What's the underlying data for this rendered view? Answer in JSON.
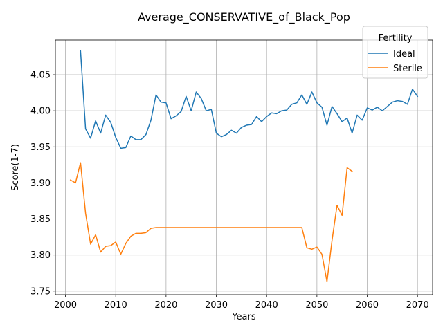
{
  "chart_data": {
    "type": "line",
    "title": "Average_CONSERVATIVE_of_Black_Pop",
    "xlabel": "Years",
    "ylabel": "Score(1-7)",
    "xlim": [
      1998,
      2073
    ],
    "ylim": [
      3.745,
      4.098
    ],
    "xticks": [
      2000,
      2010,
      2020,
      2030,
      2040,
      2050,
      2060,
      2070
    ],
    "yticks": [
      3.75,
      3.8,
      3.85,
      3.9,
      3.95,
      4.0,
      4.05
    ],
    "ytick_labels": [
      "3.75",
      "3.80",
      "3.85",
      "3.90",
      "3.95",
      "4.00",
      "4.05"
    ],
    "grid": true,
    "legend": {
      "title": "Fertility",
      "placement": "top-right"
    },
    "series": [
      {
        "name": "Ideal",
        "color": "#1f77b4",
        "x": [
          2003,
          2004,
          2005,
          2006,
          2007,
          2008,
          2009,
          2010,
          2011,
          2012,
          2013,
          2014,
          2015,
          2016,
          2017,
          2018,
          2019,
          2020,
          2021,
          2022,
          2023,
          2024,
          2025,
          2026,
          2027,
          2028,
          2029,
          2030,
          2031,
          2032,
          2033,
          2034,
          2035,
          2036,
          2037,
          2038,
          2039,
          2040,
          2041,
          2042,
          2043,
          2044,
          2045,
          2046,
          2047,
          2048,
          2049,
          2050,
          2051,
          2052,
          2053,
          2054,
          2055,
          2056,
          2057,
          2058,
          2059,
          2060,
          2061,
          2062,
          2063,
          2064,
          2065,
          2066,
          2067,
          2068,
          2069,
          2070
        ],
        "y": [
          4.083,
          3.975,
          3.962,
          3.986,
          3.969,
          3.994,
          3.984,
          3.963,
          3.948,
          3.949,
          3.965,
          3.96,
          3.96,
          3.967,
          3.987,
          4.022,
          4.012,
          4.011,
          3.989,
          3.993,
          3.999,
          4.02,
          4.0,
          4.026,
          4.017,
          4.0,
          4.002,
          3.969,
          3.964,
          3.967,
          3.973,
          3.969,
          3.977,
          3.98,
          3.981,
          3.992,
          3.985,
          3.992,
          3.997,
          3.996,
          4.0,
          4.001,
          4.009,
          4.011,
          4.022,
          4.009,
          4.026,
          4.011,
          4.005,
          3.98,
          4.006,
          3.996,
          3.985,
          3.99,
          3.969,
          3.994,
          3.987,
          4.004,
          4.001,
          4.005,
          4.0,
          4.006,
          4.012,
          4.014,
          4.013,
          4.009,
          4.03,
          4.02
        ]
      },
      {
        "name": "Sterile",
        "color": "#ff7f0e",
        "x": [
          2001,
          2002,
          2003,
          2004,
          2005,
          2006,
          2007,
          2008,
          2009,
          2010,
          2011,
          2012,
          2013,
          2014,
          2015,
          2016,
          2017,
          2018,
          2019,
          2020,
          2021,
          2022,
          2023,
          2024,
          2025,
          2026,
          2027,
          2028,
          2029,
          2030,
          2031,
          2032,
          2033,
          2034,
          2035,
          2036,
          2037,
          2038,
          2039,
          2040,
          2041,
          2042,
          2043,
          2044,
          2045,
          2046,
          2047,
          2048,
          2049,
          2050,
          2051,
          2052,
          2053,
          2054,
          2055,
          2056,
          2057
        ],
        "y": [
          3.904,
          3.9,
          3.928,
          3.858,
          3.815,
          3.828,
          3.804,
          3.812,
          3.813,
          3.818,
          3.801,
          3.816,
          3.826,
          3.83,
          3.83,
          3.831,
          3.837,
          3.838,
          3.838,
          3.838,
          3.838,
          3.838,
          3.838,
          3.838,
          3.838,
          3.838,
          3.838,
          3.838,
          3.838,
          3.838,
          3.838,
          3.838,
          3.838,
          3.838,
          3.838,
          3.838,
          3.838,
          3.838,
          3.838,
          3.838,
          3.838,
          3.838,
          3.838,
          3.838,
          3.838,
          3.838,
          3.838,
          3.81,
          3.808,
          3.811,
          3.801,
          3.763,
          3.82,
          3.869,
          3.855,
          3.921,
          3.916
        ]
      }
    ]
  }
}
